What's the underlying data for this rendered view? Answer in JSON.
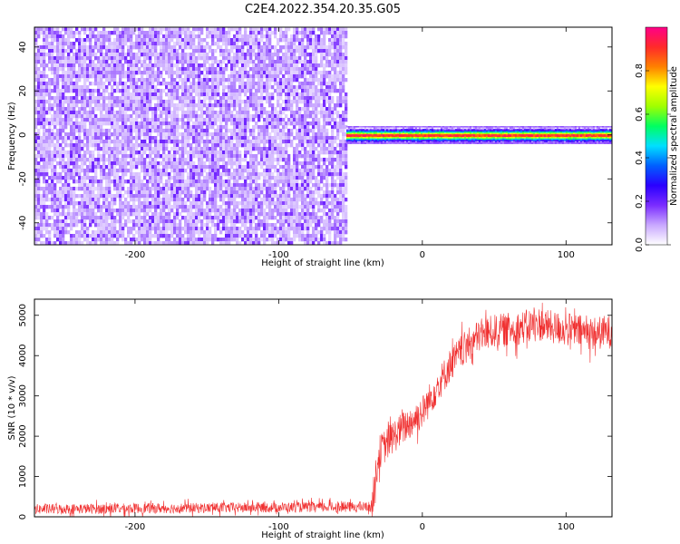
{
  "figure": {
    "title": "C2E4.2022.354.20.35.G05"
  },
  "chart_data": [
    {
      "type": "heatmap",
      "title": "",
      "xlabel": "Height of straight line (km)",
      "ylabel": "Frequency (Hz)",
      "xlim": [
        -270,
        132
      ],
      "ylim": [
        -50,
        49
      ],
      "xticks": [
        -200,
        -100,
        0,
        100
      ],
      "yticks": [
        -40,
        -20,
        0,
        20,
        40
      ],
      "xtick_labels": [
        "-200",
        "-100",
        "0",
        "100"
      ],
      "ytick_labels": [
        "-40",
        "-20",
        "0",
        "20",
        "40"
      ],
      "colorbar": {
        "label": "Normalized spectral amplitude",
        "range": [
          0,
          1
        ],
        "ticks": [
          0.0,
          0.2,
          0.4,
          0.6,
          0.8
        ],
        "tick_labels": [
          "0.0",
          "0.2",
          "0.4",
          "0.6",
          "0.8"
        ],
        "colors": [
          "#ffffff",
          "#c9a8ff",
          "#7a2cff",
          "#2a00ff",
          "#0060ff",
          "#00e0ff",
          "#00ff60",
          "#a0ff00",
          "#ffff00",
          "#ff8000",
          "#ff2a2a",
          "#ff0088"
        ]
      },
      "regions": [
        {
          "x_range": [
            -270,
            -53
          ],
          "freq_range": [
            -50,
            49
          ],
          "description": "broadband noise",
          "amplitude_range": [
            0.05,
            0.2
          ]
        },
        {
          "x_range": [
            -53,
            132
          ],
          "freq_center": 0,
          "freq_halfwidth": 4,
          "description": "narrow carrier line",
          "amplitude_peak": 0.9
        }
      ]
    },
    {
      "type": "line",
      "title": "",
      "xlabel": "Height of straight line (km)",
      "ylabel": "SNR (10 * v/v)",
      "xlim": [
        -270,
        132
      ],
      "ylim": [
        0,
        5400
      ],
      "xticks": [
        -200,
        -100,
        0,
        100
      ],
      "yticks": [
        0,
        1000,
        2000,
        3000,
        4000,
        5000
      ],
      "xtick_labels": [
        "-200",
        "-100",
        "0",
        "100"
      ],
      "ytick_labels": [
        "0",
        "1000",
        "2000",
        "3000",
        "4000",
        "5000"
      ],
      "color": "#f03030",
      "profile": {
        "x": [
          -270,
          -35,
          -33,
          -30,
          -20,
          -10,
          0,
          10,
          20,
          30,
          40,
          50,
          60,
          70,
          80,
          90,
          100,
          110,
          120,
          132
        ],
        "y": [
          190,
          250,
          900,
          1600,
          2000,
          2300,
          2600,
          3200,
          3800,
          4200,
          4500,
          4600,
          4650,
          4700,
          4800,
          4700,
          4650,
          4600,
          4550,
          4600
        ]
      },
      "noise_amplitude": [
        180,
        600
      ]
    }
  ]
}
